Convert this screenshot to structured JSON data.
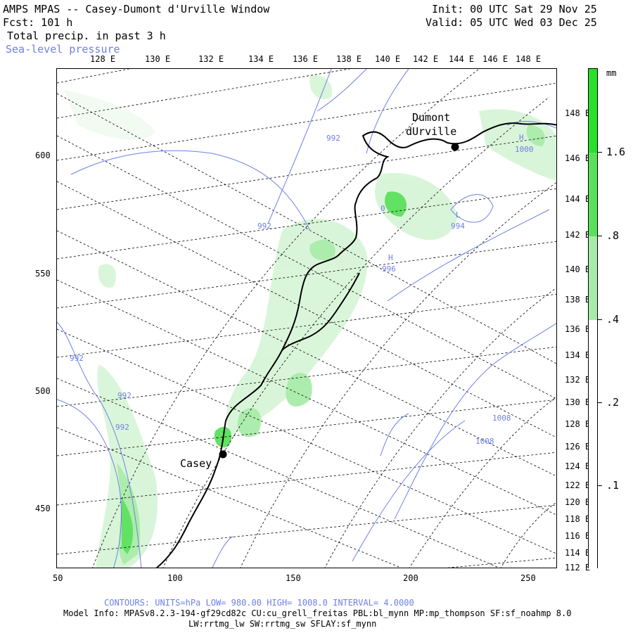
{
  "header": {
    "title": "AMPS MPAS -- Casey-Dumont d'Urville Window",
    "forecast": "Fcst:  101 h",
    "field1": "Total precip. in past 3 h",
    "field2": "Sea-level pressure",
    "init": "Init: 00 UTC Sat 29 Nov 25",
    "valid": "Valid: 05 UTC Wed 03 Dec 25"
  },
  "map": {
    "top_lon_labels": [
      "128 E",
      "130 E",
      "132 E",
      "134 E",
      "136 E",
      "138 E",
      "140 E",
      "142 E",
      "144 E",
      "146 E",
      "148 E"
    ],
    "right_lon_labels": [
      "148 E",
      "146 E",
      "144 E",
      "142 E",
      "140 E",
      "138 E",
      "136 E",
      "134 E",
      "132 E",
      "130 E",
      "128 E",
      "126 E",
      "124 E",
      "122 E",
      "120 E",
      "118 E",
      "116 E",
      "114 E",
      "112 E"
    ],
    "x_axis_labels": [
      "50",
      "100",
      "150",
      "200",
      "250"
    ],
    "y_axis_labels": [
      "600",
      "550",
      "500",
      "450"
    ],
    "stations": [
      {
        "name": "Casey",
        "label": "Casey"
      },
      {
        "name": "dumont",
        "label_line1": "Dumont",
        "label_line2": "dUrville"
      }
    ],
    "contour_labels": [
      {
        "id": "c1",
        "text": "992"
      },
      {
        "id": "c2",
        "text": "992"
      },
      {
        "id": "c3",
        "text": "992"
      },
      {
        "id": "c4",
        "text": "992"
      },
      {
        "id": "c5",
        "text": "992"
      },
      {
        "id": "c6",
        "text": "0"
      },
      {
        "id": "c7",
        "text": "H"
      },
      {
        "id": "c8",
        "text": "996"
      },
      {
        "id": "c9",
        "text": "L"
      },
      {
        "id": "c10",
        "text": "994"
      },
      {
        "id": "c11",
        "text": "H"
      },
      {
        "id": "c12",
        "text": "1000"
      },
      {
        "id": "c13",
        "text": "1008"
      },
      {
        "id": "c14",
        "text": "1008"
      }
    ],
    "colors": {
      "coast": "#000000",
      "contour": "#6f7fe6",
      "grid": "#000000",
      "precip_light": "#d8f5d8",
      "precip_mid": "#a8eba8",
      "precip_strong": "#5be05b",
      "precip_max": "#27e027"
    }
  },
  "legend": {
    "unit": "mm",
    "labels": [
      "1.6",
      ".8",
      ".4",
      ".2",
      ".1"
    ],
    "colors": [
      "#27e027",
      "#5be05b",
      "#a8eba8",
      "#ffffff",
      "#ffffff"
    ]
  },
  "footer": {
    "contours_label": "CONTOURS:  UNITS=hPa  LOW=  980.00        HIGH=  1008.0        INTERVAL=    4.0000",
    "model_info_line1": "Model Info: MPASv8.2.3-194-gf29cd82c CU:cu_grell_freitas PBL:bl_mynn MP:mp_thompson SF:sf_noahmp 8.0",
    "model_info_line2": "LW:rrtmg_lw SW:rrtmg_sw SFLAY:sf_mynn"
  }
}
